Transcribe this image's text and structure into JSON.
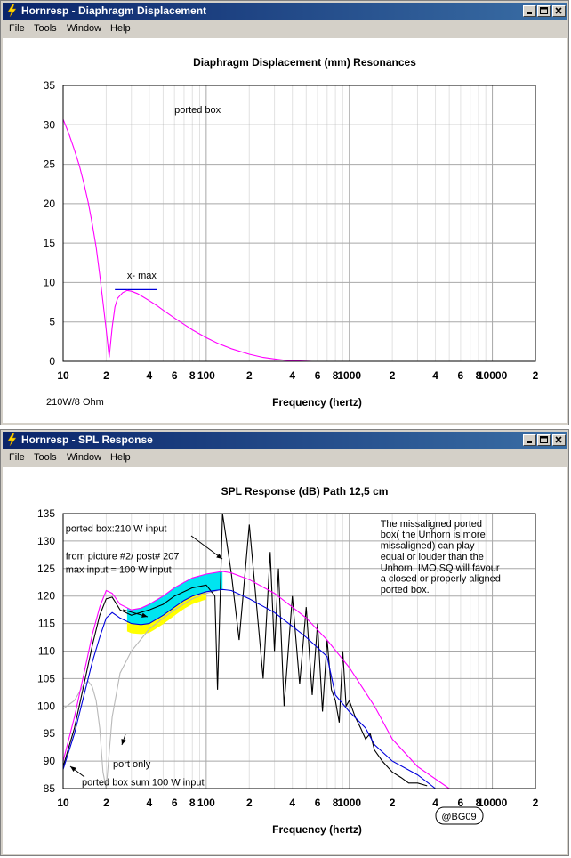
{
  "windows": [
    {
      "title": "Hornresp - Diaphragm Displacement",
      "menu": [
        "File",
        "Tools",
        "Window",
        "Help"
      ],
      "footer_note": "210W/8 Ohm"
    },
    {
      "title": "Hornresp - SPL Response",
      "menu": [
        "File",
        "Tools",
        "Window",
        "Help"
      ],
      "footer_note": "@BG09"
    }
  ],
  "colors": {
    "titlebar_start": "#0a246a",
    "titlebar_end": "#3a6ea5",
    "magenta": "#ff00ff",
    "blue": "#0000dd",
    "black": "#000000",
    "gray": "#b8b8b8",
    "cyan": "#00e5f0",
    "yellow": "#ffff00"
  },
  "chart_data": [
    {
      "type": "line",
      "title": "Diaphragm Displacement (mm)    Resonances",
      "xlabel": "Frequency (hertz)",
      "ylabel": "",
      "x_scale": "log",
      "xlim": [
        10,
        20000
      ],
      "ylim": [
        0,
        35
      ],
      "grid": true,
      "x_tick_labels": [
        "10",
        "2",
        "4",
        "6",
        "8",
        "100",
        "2",
        "4",
        "6",
        "8",
        "1000",
        "2",
        "4",
        "6",
        "8",
        "10000",
        "2"
      ],
      "x_tick_values": [
        10,
        20,
        40,
        60,
        80,
        100,
        200,
        400,
        600,
        800,
        1000,
        2000,
        4000,
        6000,
        8000,
        10000,
        20000
      ],
      "y_ticks": [
        0,
        5,
        10,
        15,
        20,
        25,
        30,
        35
      ],
      "annotations": [
        {
          "text": "ported box",
          "x": 60,
          "y": 31.5
        },
        {
          "text": "x- max",
          "x": 28,
          "y": 10.5
        }
      ],
      "reference_lines": [
        {
          "name": "x- max",
          "x_range": [
            23,
            45
          ],
          "y": 9.1,
          "color": "#0000dd"
        }
      ],
      "series": [
        {
          "color": "#ff00ff",
          "x": [
            10,
            11,
            12,
            13,
            14,
            15,
            16,
            17,
            18,
            19,
            20,
            21,
            22,
            23,
            24,
            26,
            28,
            30,
            33,
            36,
            40,
            45,
            50,
            60,
            70,
            80,
            100,
            120,
            150,
            200,
            250,
            300,
            350,
            400,
            450,
            500,
            550
          ],
          "y": [
            30.7,
            28.8,
            26.8,
            24.8,
            22.5,
            20.1,
            17.4,
            14.5,
            11.0,
            7.5,
            4.0,
            0.5,
            4.3,
            6.9,
            8.0,
            8.7,
            9.0,
            8.9,
            8.6,
            8.2,
            7.7,
            7.1,
            6.5,
            5.5,
            4.7,
            4.0,
            3.0,
            2.3,
            1.6,
            0.9,
            0.5,
            0.3,
            0.15,
            0.08,
            0.04,
            0.02,
            0.0
          ]
        }
      ]
    },
    {
      "type": "line",
      "title": "SPL Response (dB)    Path 12,5 cm",
      "xlabel": "Frequency (hertz)",
      "ylabel": "",
      "x_scale": "log",
      "xlim": [
        10,
        20000
      ],
      "ylim": [
        85,
        135
      ],
      "grid": true,
      "x_tick_labels": [
        "10",
        "2",
        "4",
        "6",
        "8",
        "100",
        "2",
        "4",
        "6",
        "8",
        "1000",
        "2",
        "4",
        "6",
        "8",
        "10000",
        "2"
      ],
      "x_tick_values": [
        10,
        20,
        40,
        60,
        80,
        100,
        200,
        400,
        600,
        800,
        1000,
        2000,
        4000,
        6000,
        8000,
        10000,
        20000
      ],
      "y_ticks": [
        85,
        90,
        95,
        100,
        105,
        110,
        115,
        120,
        125,
        130,
        135
      ],
      "annotations": [
        {
          "text": "ported box:210 W input",
          "x": 10.4,
          "y": 131.7
        },
        {
          "text": "from picture #2/ post# 207",
          "x": 10.4,
          "y": 126.7
        },
        {
          "text": "max input = 100 W input",
          "x": 10.4,
          "y": 124.2
        },
        {
          "text": "port only",
          "x": 22.3,
          "y": 88.9
        },
        {
          "text": "ported box sum  100 W input",
          "x": 13.5,
          "y": 85.6
        },
        {
          "text": "The missaligned ported",
          "x": 1650,
          "y": 132.6
        },
        {
          "text": "box( the Unhorn is more",
          "x": 1650,
          "y": 130.6
        },
        {
          "text": "missaligned) can play",
          "x": 1650,
          "y": 128.6
        },
        {
          "text": "equal or louder than the",
          "x": 1650,
          "y": 126.6
        },
        {
          "text": "Unhorn. IMO,SQ will favour",
          "x": 1650,
          "y": 124.6
        },
        {
          "text": "a closed or properly aligned",
          "x": 1650,
          "y": 122.6
        },
        {
          "text": "ported box.",
          "x": 1650,
          "y": 120.6
        }
      ],
      "shaded_regions": [
        {
          "color": "#00e5f0",
          "between": [
            "ported box 210 W (magenta)",
            "ported box 100 W (blue)"
          ],
          "x_range": [
            28,
            130
          ]
        },
        {
          "color": "#ffff00",
          "between": [
            "ported box 100 W (blue)",
            "reference"
          ],
          "x_range": [
            28,
            100
          ]
        }
      ],
      "series": [
        {
          "color": "#ff00ff",
          "x": [
            10,
            12,
            14,
            16,
            18,
            20,
            22,
            25,
            30,
            35,
            40,
            50,
            60,
            70,
            80,
            100,
            130,
            150,
            200,
            300,
            400,
            500,
            700,
            1000,
            1500,
            2000,
            3000,
            5000
          ],
          "y": [
            90,
            98,
            106,
            113,
            118,
            121,
            120.5,
            118.5,
            117.5,
            117.8,
            118.5,
            120,
            121.5,
            122.5,
            123.3,
            124,
            124.5,
            124.2,
            123,
            120.5,
            118,
            116,
            112,
            107,
            100,
            94,
            89,
            85
          ]
        },
        {
          "color": "#0000dd",
          "x": [
            10,
            12,
            14,
            16,
            18,
            20,
            22,
            25,
            30,
            35,
            40,
            50,
            60,
            70,
            80,
            100,
            130,
            150,
            200,
            300,
            400,
            500,
            700,
            800,
            1000,
            1300,
            1500,
            2000,
            3000,
            4000
          ],
          "y": [
            88.5,
            95,
            102,
            108,
            112.5,
            116,
            117,
            116,
            115,
            114.8,
            115,
            116.5,
            118,
            119.2,
            120,
            120.8,
            121.2,
            121,
            119.5,
            117,
            114.5,
            112.5,
            109,
            102,
            99,
            96,
            93,
            90,
            87.5,
            85
          ]
        },
        {
          "color": "#000000",
          "x": [
            10,
            12,
            14,
            16,
            18,
            20,
            22,
            25,
            30,
            40,
            50,
            60,
            80,
            100,
            115,
            120,
            130,
            150,
            170,
            200,
            250,
            280,
            300,
            320,
            350,
            400,
            450,
            500,
            550,
            600,
            650,
            700,
            750,
            800,
            850,
            900,
            950,
            1000,
            1100,
            1200,
            1300,
            1400,
            1500,
            1700,
            2000,
            2300,
            2600,
            3000,
            3500
          ],
          "y": [
            89,
            96,
            104,
            111,
            116.5,
            119.5,
            119.8,
            117.5,
            116.5,
            117.5,
            118.5,
            120,
            121.5,
            122,
            120,
            103,
            135,
            124,
            112,
            133,
            105,
            128,
            110,
            125,
            100,
            120,
            104,
            118,
            102,
            115,
            99,
            112,
            103,
            101,
            97,
            110,
            100,
            101,
            98,
            96,
            94,
            95,
            92,
            90,
            88,
            87,
            86,
            86,
            85.5
          ]
        },
        {
          "color": "#b8b8b8",
          "x": [
            10,
            12,
            14,
            15,
            16,
            17,
            18,
            19,
            20,
            22,
            25,
            30,
            40,
            50,
            60,
            80,
            100,
            120
          ],
          "y": [
            99.5,
            101,
            104,
            104.5,
            103.5,
            101,
            96,
            88,
            85,
            98,
            106,
            110,
            114,
            116,
            117.5,
            119.5,
            120.5,
            121
          ]
        }
      ]
    }
  ]
}
